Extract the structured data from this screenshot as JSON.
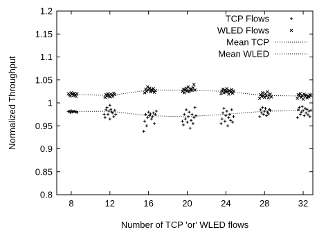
{
  "chart_data": {
    "type": "scatter",
    "title": "",
    "xlabel": "Number of TCP 'or' WLED flows",
    "ylabel": "Normalized Throughput",
    "xlim": [
      6.5,
      33
    ],
    "ylim": [
      0.8,
      1.2
    ],
    "x_ticks": [
      8,
      12,
      16,
      20,
      24,
      28,
      32
    ],
    "y_ticks": [
      0.8,
      0.85,
      0.9,
      0.95,
      1,
      1.05,
      1.1,
      1.15,
      1.2
    ],
    "x_tick_labels": [
      "8",
      "12",
      "16",
      "20",
      "24",
      "28",
      "32"
    ],
    "y_tick_labels": [
      "0.8",
      "0.85",
      "0.9",
      "0.95",
      "1",
      "1.05",
      "1.1",
      "1.15",
      "1.2"
    ],
    "grid": false,
    "legend_position": "top-right",
    "legend": {
      "tcp_flows": "TCP Flows",
      "wled_flows": "WLED Flows",
      "mean_tcp": "Mean TCP",
      "mean_wled": "Mean WLED"
    },
    "series": [
      {
        "name": "TCP Flows",
        "marker": "plus",
        "points": [
          [
            7.7,
            0.981
          ],
          [
            7.8,
            0.982
          ],
          [
            7.9,
            0.979
          ],
          [
            8.0,
            0.983
          ],
          [
            8.1,
            0.98
          ],
          [
            8.2,
            0.981
          ],
          [
            8.3,
            0.982
          ],
          [
            8.4,
            0.98
          ],
          [
            8.5,
            0.981
          ],
          [
            8.6,
            0.979
          ],
          [
            11.4,
            0.975
          ],
          [
            11.5,
            0.968
          ],
          [
            11.6,
            0.985
          ],
          [
            11.7,
            0.99
          ],
          [
            11.8,
            0.975
          ],
          [
            11.9,
            0.982
          ],
          [
            12.0,
            0.995
          ],
          [
            12.1,
            0.986
          ],
          [
            12.2,
            0.98
          ],
          [
            12.3,
            0.978
          ],
          [
            12.4,
            0.97
          ],
          [
            12.5,
            0.984
          ],
          [
            12.6,
            0.975
          ],
          [
            12.0,
            0.965
          ],
          [
            15.5,
            0.938
          ],
          [
            15.6,
            0.96
          ],
          [
            15.7,
            0.975
          ],
          [
            15.8,
            0.95
          ],
          [
            15.9,
            0.968
          ],
          [
            16.0,
            0.98
          ],
          [
            16.1,
            0.972
          ],
          [
            16.2,
            0.976
          ],
          [
            16.3,
            0.965
          ],
          [
            16.4,
            0.97
          ],
          [
            16.5,
            0.978
          ],
          [
            16.6,
            0.955
          ],
          [
            16.7,
            0.975
          ],
          [
            16.8,
            0.982
          ],
          [
            19.5,
            0.96
          ],
          [
            19.6,
            0.952
          ],
          [
            19.7,
            0.975
          ],
          [
            19.8,
            0.965
          ],
          [
            19.9,
            0.985
          ],
          [
            20.0,
            0.958
          ],
          [
            20.1,
            0.97
          ],
          [
            20.2,
            0.98
          ],
          [
            20.3,
            0.945
          ],
          [
            20.4,
            0.962
          ],
          [
            20.5,
            0.975
          ],
          [
            20.6,
            0.955
          ],
          [
            20.7,
            0.968
          ],
          [
            20.8,
            0.99
          ],
          [
            20.9,
            0.972
          ],
          [
            23.5,
            0.955
          ],
          [
            23.6,
            0.965
          ],
          [
            23.7,
            0.978
          ],
          [
            23.8,
            0.988
          ],
          [
            23.9,
            0.96
          ],
          [
            24.0,
            0.972
          ],
          [
            24.1,
            0.982
          ],
          [
            24.2,
            0.95
          ],
          [
            24.3,
            0.968
          ],
          [
            24.4,
            0.975
          ],
          [
            24.5,
            0.962
          ],
          [
            24.6,
            0.985
          ],
          [
            24.7,
            0.958
          ],
          [
            24.8,
            0.97
          ],
          [
            27.5,
            0.97
          ],
          [
            27.6,
            0.985
          ],
          [
            27.7,
            0.978
          ],
          [
            27.8,
            0.99
          ],
          [
            27.9,
            0.975
          ],
          [
            28.0,
            0.982
          ],
          [
            28.1,
            0.988
          ],
          [
            28.2,
            0.972
          ],
          [
            28.3,
            0.98
          ],
          [
            28.4,
            0.976
          ],
          [
            28.5,
            0.986
          ],
          [
            28.6,
            0.983
          ],
          [
            31.4,
            0.968
          ],
          [
            31.5,
            0.985
          ],
          [
            31.6,
            0.99
          ],
          [
            31.7,
            0.975
          ],
          [
            31.8,
            0.98
          ],
          [
            31.9,
            0.992
          ],
          [
            32.0,
            0.983
          ],
          [
            32.1,
            0.972
          ],
          [
            32.2,
            0.988
          ],
          [
            32.3,
            0.978
          ],
          [
            32.4,
            0.986
          ],
          [
            32.5,
            0.974
          ],
          [
            32.6,
            0.982
          ],
          [
            32.7,
            0.97
          ],
          [
            32.8,
            0.984
          ]
        ]
      },
      {
        "name": "WLED Flows",
        "marker": "cross",
        "points": [
          [
            7.7,
            1.02
          ],
          [
            7.8,
            1.018
          ],
          [
            7.9,
            1.015
          ],
          [
            8.0,
            1.022
          ],
          [
            8.1,
            1.019
          ],
          [
            8.2,
            1.016
          ],
          [
            8.3,
            1.021
          ],
          [
            8.4,
            1.017
          ],
          [
            8.5,
            1.014
          ],
          [
            8.6,
            1.02
          ],
          [
            11.5,
            1.012
          ],
          [
            11.6,
            1.018
          ],
          [
            11.7,
            1.015
          ],
          [
            11.8,
            1.02
          ],
          [
            11.9,
            1.016
          ],
          [
            12.0,
            1.013
          ],
          [
            12.1,
            1.019
          ],
          [
            12.2,
            1.017
          ],
          [
            12.3,
            1.014
          ],
          [
            12.4,
            1.021
          ],
          [
            12.5,
            1.018
          ],
          [
            15.6,
            1.022
          ],
          [
            15.7,
            1.03
          ],
          [
            15.8,
            1.025
          ],
          [
            15.9,
            1.035
          ],
          [
            16.0,
            1.028
          ],
          [
            16.1,
            1.032
          ],
          [
            16.2,
            1.024
          ],
          [
            16.3,
            1.029
          ],
          [
            16.4,
            1.026
          ],
          [
            16.5,
            1.031
          ],
          [
            16.6,
            1.023
          ],
          [
            16.7,
            1.027
          ],
          [
            19.5,
            1.025
          ],
          [
            19.6,
            1.03
          ],
          [
            19.7,
            1.022
          ],
          [
            19.8,
            1.028
          ],
          [
            19.9,
            1.032
          ],
          [
            20.0,
            1.026
          ],
          [
            20.1,
            1.035
          ],
          [
            20.2,
            1.024
          ],
          [
            20.3,
            1.029
          ],
          [
            20.4,
            1.031
          ],
          [
            20.5,
            1.027
          ],
          [
            20.6,
            1.033
          ],
          [
            20.7,
            1.04
          ],
          [
            20.8,
            1.028
          ],
          [
            23.5,
            1.02
          ],
          [
            23.6,
            1.026
          ],
          [
            23.7,
            1.03
          ],
          [
            23.8,
            1.022
          ],
          [
            23.9,
            1.028
          ],
          [
            24.0,
            1.024
          ],
          [
            24.1,
            1.031
          ],
          [
            24.2,
            1.025
          ],
          [
            24.3,
            1.019
          ],
          [
            24.4,
            1.027
          ],
          [
            24.5,
            1.023
          ],
          [
            24.6,
            1.029
          ],
          [
            24.7,
            1.021
          ],
          [
            24.8,
            1.026
          ],
          [
            27.5,
            1.01
          ],
          [
            27.6,
            1.018
          ],
          [
            27.7,
            1.014
          ],
          [
            27.8,
            1.022
          ],
          [
            27.9,
            1.016
          ],
          [
            28.0,
            1.012
          ],
          [
            28.1,
            1.02
          ],
          [
            28.2,
            1.015
          ],
          [
            28.3,
            1.024
          ],
          [
            28.4,
            1.011
          ],
          [
            28.5,
            1.017
          ],
          [
            28.6,
            1.019
          ],
          [
            28.7,
            1.013
          ],
          [
            31.4,
            1.01
          ],
          [
            31.5,
            1.018
          ],
          [
            31.6,
            1.015
          ],
          [
            31.7,
            1.02
          ],
          [
            31.8,
            1.012
          ],
          [
            31.9,
            1.016
          ],
          [
            32.0,
            1.008
          ],
          [
            32.1,
            1.019
          ],
          [
            32.2,
            1.014
          ],
          [
            32.3,
            1.017
          ],
          [
            32.4,
            1.011
          ],
          [
            32.5,
            1.015
          ],
          [
            32.6,
            1.013
          ],
          [
            32.7,
            1.018
          ],
          [
            32.8,
            1.016
          ]
        ]
      },
      {
        "name": "Mean TCP",
        "style": "dotted-line",
        "x": [
          8,
          12,
          16,
          20,
          24,
          28,
          32
        ],
        "values": [
          0.981,
          0.982,
          0.972,
          0.97,
          0.975,
          0.982,
          0.983
        ]
      },
      {
        "name": "Mean WLED",
        "style": "dotted-line",
        "x": [
          8,
          12,
          16,
          20,
          24,
          28,
          32
        ],
        "values": [
          1.019,
          1.016,
          1.028,
          1.028,
          1.025,
          1.016,
          1.015
        ]
      }
    ]
  }
}
